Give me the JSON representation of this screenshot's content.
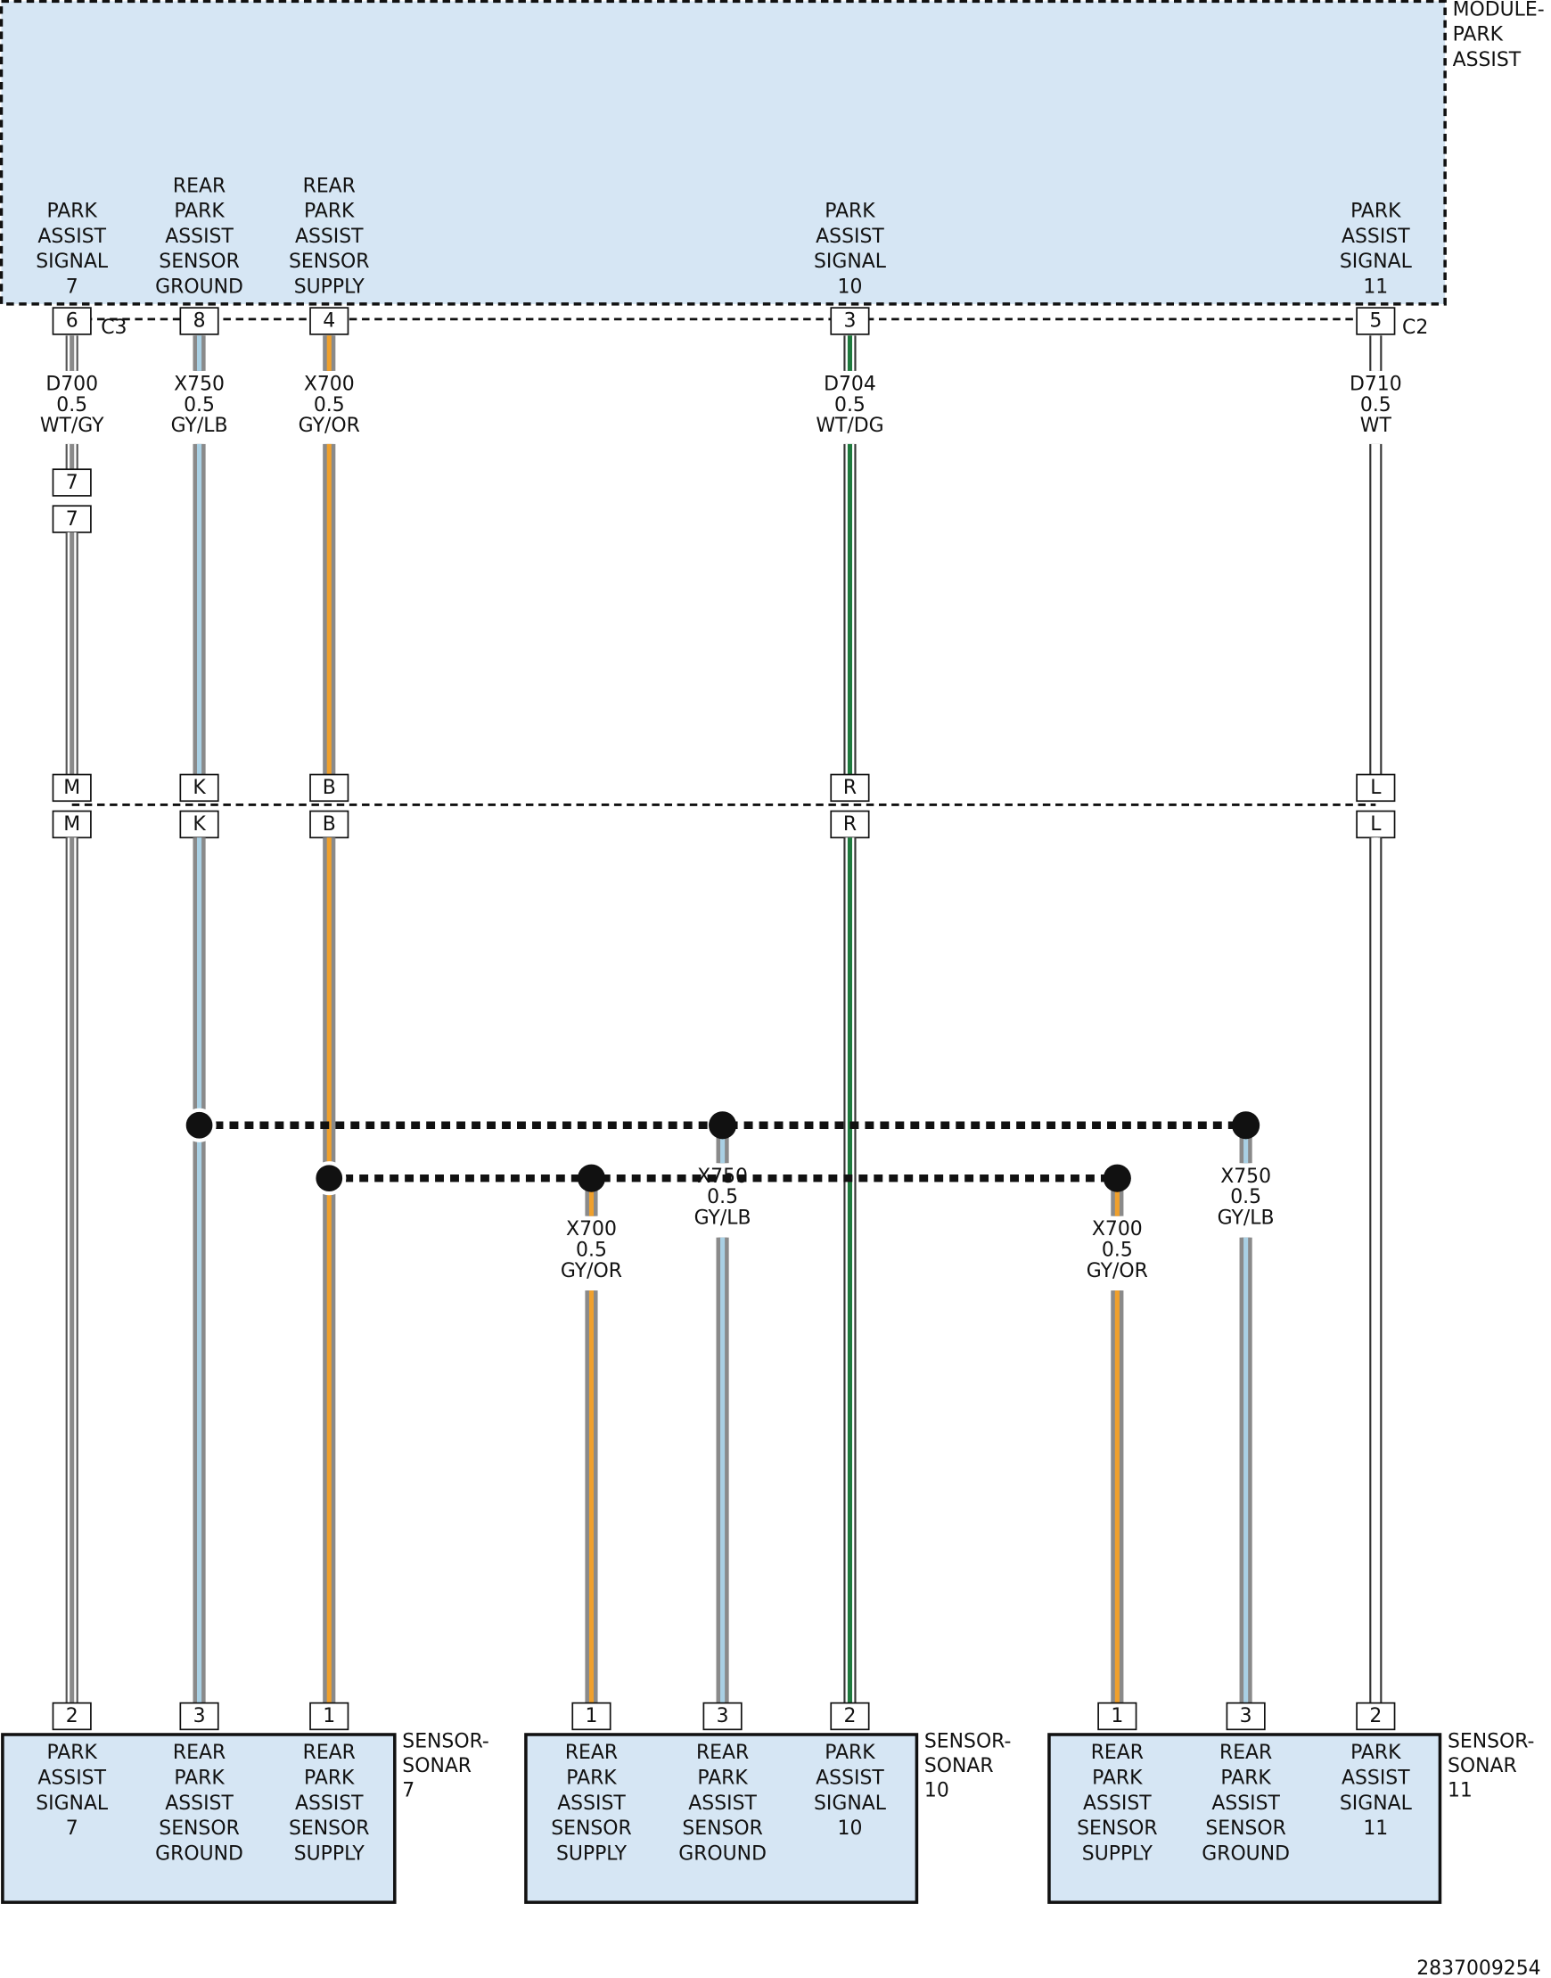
{
  "module": {
    "name": [
      "MODULE-",
      "PARK",
      "ASSIST"
    ],
    "pins": [
      {
        "label": [
          "PARK",
          "ASSIST",
          "SIGNAL",
          "7"
        ],
        "pin": "6"
      },
      {
        "label": [
          "REAR",
          "PARK",
          "ASSIST",
          "SENSOR",
          "GROUND"
        ],
        "pin": "8"
      },
      {
        "label": [
          "REAR",
          "PARK",
          "ASSIST",
          "SENSOR",
          "SUPPLY"
        ],
        "pin": "4"
      },
      {
        "label": [
          "PARK",
          "ASSIST",
          "SIGNAL",
          "10"
        ],
        "pin": "3"
      },
      {
        "label": [
          "PARK",
          "ASSIST",
          "SIGNAL",
          "11"
        ],
        "pin": "5"
      }
    ],
    "connectors": [
      "C3",
      "C2"
    ]
  },
  "wires": [
    {
      "circuit": "D700",
      "gauge": "0.5",
      "color": "WT/GY",
      "edge": "#555555",
      "base": "#ffffff",
      "stripe": "#8a8a8a"
    },
    {
      "circuit": "X750",
      "gauge": "0.5",
      "color": "GY/LB",
      "edge": "#8a8a8a",
      "base": "#8a8a8a",
      "stripe": "#a9d0e4"
    },
    {
      "circuit": "X700",
      "gauge": "0.5",
      "color": "GY/OR",
      "edge": "#8a8a8a",
      "base": "#8a8a8a",
      "stripe": "#f0a02c"
    },
    {
      "circuit": "D704",
      "gauge": "0.5",
      "color": "WT/DG",
      "edge": "#333333",
      "base": "#ffffff",
      "stripe": "#1f7a3e"
    },
    {
      "circuit": "D710",
      "gauge": "0.5",
      "color": "WT",
      "edge": "#333333",
      "base": "#ffffff",
      "stripe": "#ffffff"
    }
  ],
  "inline_connector": {
    "upper": "7",
    "lower": "7"
  },
  "harness_connector": {
    "upper": [
      "M",
      "K",
      "B",
      "R",
      "L"
    ],
    "lower": [
      "M",
      "K",
      "B",
      "R",
      "L"
    ]
  },
  "branches": [
    {
      "circuit": "X700",
      "gauge": "0.5",
      "color": "GY/OR",
      "edge": "#8a8a8a",
      "base": "#8a8a8a",
      "stripe": "#f0a02c"
    },
    {
      "circuit": "X750",
      "gauge": "0.5",
      "color": "GY/LB",
      "edge": "#8a8a8a",
      "base": "#8a8a8a",
      "stripe": "#a9d0e4"
    },
    {
      "circuit": "X700",
      "gauge": "0.5",
      "color": "GY/OR",
      "edge": "#8a8a8a",
      "base": "#8a8a8a",
      "stripe": "#f0a02c"
    },
    {
      "circuit": "X750",
      "gauge": "0.5",
      "color": "GY/LB",
      "edge": "#8a8a8a",
      "base": "#8a8a8a",
      "stripe": "#a9d0e4"
    }
  ],
  "sensors": [
    {
      "name": [
        "SENSOR-",
        "SONAR",
        "7"
      ],
      "pins": [
        {
          "pin": "2",
          "label": [
            "PARK",
            "ASSIST",
            "SIGNAL",
            "7"
          ]
        },
        {
          "pin": "3",
          "label": [
            "REAR",
            "PARK",
            "ASSIST",
            "SENSOR",
            "GROUND"
          ]
        },
        {
          "pin": "1",
          "label": [
            "REAR",
            "PARK",
            "ASSIST",
            "SENSOR",
            "SUPPLY"
          ]
        }
      ]
    },
    {
      "name": [
        "SENSOR-",
        "SONAR",
        "10"
      ],
      "pins": [
        {
          "pin": "1",
          "label": [
            "REAR",
            "PARK",
            "ASSIST",
            "SENSOR",
            "SUPPLY"
          ]
        },
        {
          "pin": "3",
          "label": [
            "REAR",
            "PARK",
            "ASSIST",
            "SENSOR",
            "GROUND"
          ]
        },
        {
          "pin": "2",
          "label": [
            "PARK",
            "ASSIST",
            "SIGNAL",
            "10"
          ]
        }
      ]
    },
    {
      "name": [
        "SENSOR-",
        "SONAR",
        "11"
      ],
      "pins": [
        {
          "pin": "1",
          "label": [
            "REAR",
            "PARK",
            "ASSIST",
            "SENSOR",
            "SUPPLY"
          ]
        },
        {
          "pin": "3",
          "label": [
            "REAR",
            "PARK",
            "ASSIST",
            "SENSOR",
            "GROUND"
          ]
        },
        {
          "pin": "2",
          "label": [
            "PARK",
            "ASSIST",
            "SIGNAL",
            "11"
          ]
        }
      ]
    }
  ],
  "document_id": "2837009254"
}
